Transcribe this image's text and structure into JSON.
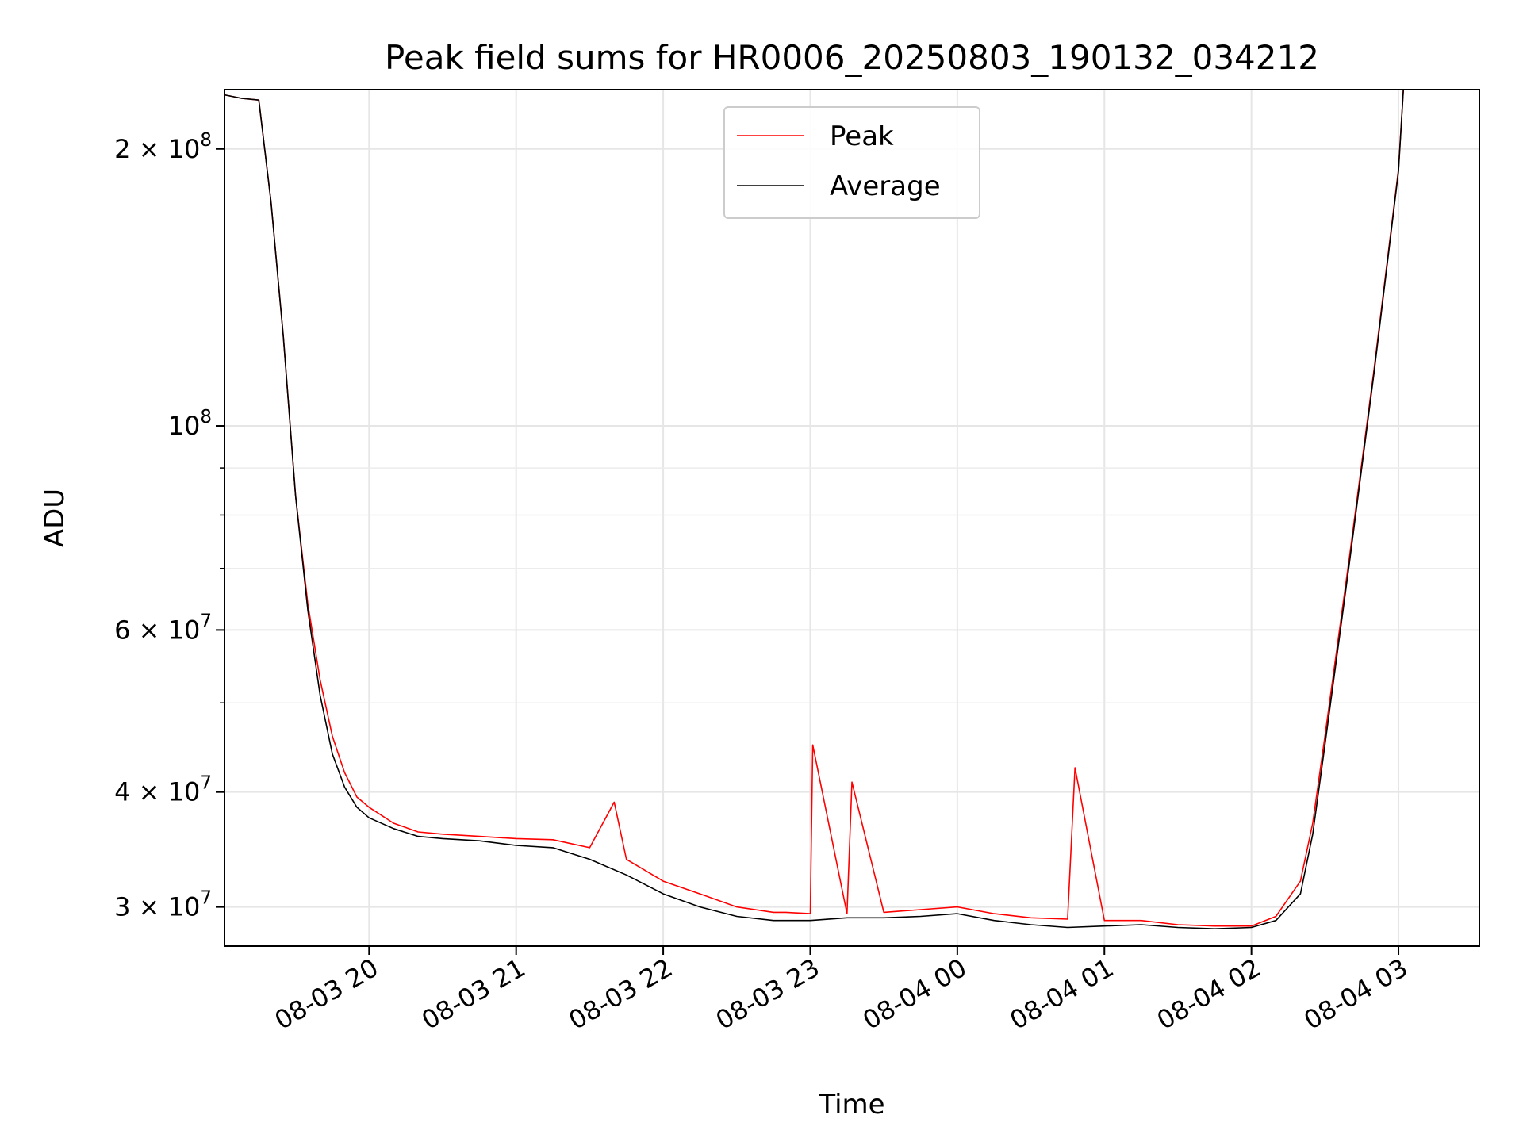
{
  "chart_data": {
    "type": "line",
    "title": "Peak field sums for HR0006_20250803_190132_034212",
    "xlabel": "Time",
    "ylabel": "ADU",
    "yscale": "log",
    "grid": true,
    "legend_position": "upper-center",
    "xlim": [
      "2025-08-03 19:01",
      "2025-08-04 03:33"
    ],
    "ylim": [
      27200000,
      232000000
    ],
    "x_ticks": [
      {
        "value": "2025-08-03 20:00",
        "label": "08-03 20"
      },
      {
        "value": "2025-08-03 21:00",
        "label": "08-03 21"
      },
      {
        "value": "2025-08-03 22:00",
        "label": "08-03 22"
      },
      {
        "value": "2025-08-03 23:00",
        "label": "08-03 23"
      },
      {
        "value": "2025-08-04 00:00",
        "label": "08-04 00"
      },
      {
        "value": "2025-08-04 01:00",
        "label": "08-04 01"
      },
      {
        "value": "2025-08-04 02:00",
        "label": "08-04 02"
      },
      {
        "value": "2025-08-04 03:00",
        "label": "08-04 03"
      }
    ],
    "y_ticks": [
      {
        "value": 30000000,
        "mantissa": "3",
        "exponent": "7"
      },
      {
        "value": 40000000,
        "mantissa": "4",
        "exponent": "7"
      },
      {
        "value": 60000000,
        "mantissa": "6",
        "exponent": "7"
      },
      {
        "value": 100000000,
        "mantissa": "",
        "exponent": "8"
      },
      {
        "value": 200000000,
        "mantissa": "2",
        "exponent": "8"
      }
    ],
    "y_minor_ticks": [
      50000000,
      70000000,
      80000000,
      90000000
    ],
    "series": [
      {
        "name": "Peak",
        "color": "#ff0000",
        "x": [
          "2025-08-03 19:01",
          "2025-08-03 19:08",
          "2025-08-03 19:15",
          "2025-08-03 19:20",
          "2025-08-03 19:25",
          "2025-08-03 19:30",
          "2025-08-03 19:35",
          "2025-08-03 19:40",
          "2025-08-03 19:45",
          "2025-08-03 19:50",
          "2025-08-03 19:55",
          "2025-08-03 20:00",
          "2025-08-03 20:10",
          "2025-08-03 20:20",
          "2025-08-03 20:30",
          "2025-08-03 20:45",
          "2025-08-03 21:00",
          "2025-08-03 21:15",
          "2025-08-03 21:30",
          "2025-08-03 21:40",
          "2025-08-03 21:45",
          "2025-08-03 22:00",
          "2025-08-03 22:15",
          "2025-08-03 22:30",
          "2025-08-03 22:45",
          "2025-08-03 22:50",
          "2025-08-03 23:00",
          "2025-08-03 23:01",
          "2025-08-03 23:15",
          "2025-08-03 23:17",
          "2025-08-03 23:30",
          "2025-08-03 23:45",
          "2025-08-04 00:00",
          "2025-08-04 00:15",
          "2025-08-04 00:30",
          "2025-08-04 00:45",
          "2025-08-04 00:48",
          "2025-08-04 01:00",
          "2025-08-04 01:15",
          "2025-08-04 01:30",
          "2025-08-04 01:45",
          "2025-08-04 02:00",
          "2025-08-04 02:10",
          "2025-08-04 02:20",
          "2025-08-04 02:25",
          "2025-08-04 02:30",
          "2025-08-04 02:40",
          "2025-08-04 02:50",
          "2025-08-04 03:00",
          "2025-08-04 03:02"
        ],
        "y": [
          229000000,
          227000000,
          226000000,
          175000000,
          125000000,
          84000000,
          64000000,
          53000000,
          46000000,
          42000000,
          39500000,
          38500000,
          37000000,
          36200000,
          36000000,
          35800000,
          35600000,
          35500000,
          34800000,
          39000000,
          33800000,
          32000000,
          31000000,
          30000000,
          29600000,
          29600000,
          29500000,
          45000000,
          29500000,
          41000000,
          29600000,
          29800000,
          30000000,
          29500000,
          29200000,
          29100000,
          42500000,
          29000000,
          29000000,
          28700000,
          28600000,
          28600000,
          29300000,
          32000000,
          37000000,
          46000000,
          72000000,
          115000000,
          190000000,
          232000000
        ]
      },
      {
        "name": "Average",
        "color": "#000000",
        "x": [
          "2025-08-03 19:01",
          "2025-08-03 19:08",
          "2025-08-03 19:15",
          "2025-08-03 19:20",
          "2025-08-03 19:25",
          "2025-08-03 19:30",
          "2025-08-03 19:35",
          "2025-08-03 19:40",
          "2025-08-03 19:45",
          "2025-08-03 19:50",
          "2025-08-03 19:55",
          "2025-08-03 20:00",
          "2025-08-03 20:10",
          "2025-08-03 20:20",
          "2025-08-03 20:30",
          "2025-08-03 20:45",
          "2025-08-03 21:00",
          "2025-08-03 21:15",
          "2025-08-03 21:30",
          "2025-08-03 21:45",
          "2025-08-03 22:00",
          "2025-08-03 22:15",
          "2025-08-03 22:30",
          "2025-08-03 22:45",
          "2025-08-03 23:00",
          "2025-08-03 23:15",
          "2025-08-03 23:30",
          "2025-08-03 23:45",
          "2025-08-04 00:00",
          "2025-08-04 00:15",
          "2025-08-04 00:30",
          "2025-08-04 00:45",
          "2025-08-04 01:00",
          "2025-08-04 01:15",
          "2025-08-04 01:30",
          "2025-08-04 01:45",
          "2025-08-04 02:00",
          "2025-08-04 02:10",
          "2025-08-04 02:20",
          "2025-08-04 02:25",
          "2025-08-04 02:30",
          "2025-08-04 02:40",
          "2025-08-04 02:50",
          "2025-08-04 03:00",
          "2025-08-04 03:02"
        ],
        "y": [
          229000000,
          227000000,
          226000000,
          175000000,
          125000000,
          84000000,
          63000000,
          51000000,
          44000000,
          40500000,
          38500000,
          37500000,
          36500000,
          35800000,
          35600000,
          35400000,
          35000000,
          34800000,
          33800000,
          32500000,
          31000000,
          30000000,
          29300000,
          29000000,
          29000000,
          29200000,
          29200000,
          29300000,
          29500000,
          29000000,
          28700000,
          28500000,
          28600000,
          28700000,
          28500000,
          28400000,
          28500000,
          29000000,
          31000000,
          36000000,
          45000000,
          71000000,
          114000000,
          189000000,
          232000000
        ]
      }
    ]
  }
}
